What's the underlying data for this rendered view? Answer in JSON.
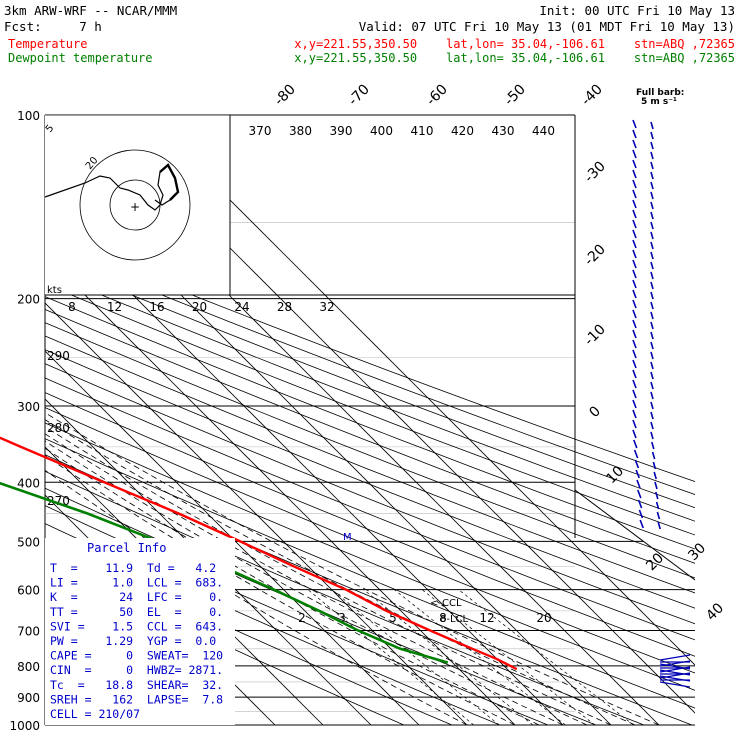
{
  "header": {
    "model": "3km ARW-WRF -- NCAR/MMM",
    "init": "Init: 00 UTC Fri 10 May 13",
    "fcst": "Fcst:     7 h",
    "valid": "Valid: 07 UTC Fri 10 May 13 (01 MDT Fri 10 May 13)",
    "temp_label": "Temperature",
    "temp_loc": "x,y=221.55,350.50    lat,lon= 35.04,-106.61    stn=ABQ ,72365",
    "dew_label": "Dewpoint temperature",
    "dew_loc": "x,y=221.55,350.50    lat,lon= 35.04,-106.61    stn=ABQ ,72365"
  },
  "legend": {
    "full_barb": "Full barb:",
    "full_barb_unit": "5 m s⁻¹"
  },
  "colors": {
    "temperature": "#ff0000",
    "dewpoint": "#008000",
    "barbs": "#0000b4",
    "parcel": "#0000cc",
    "grid": "#000000"
  },
  "parcel_info": {
    "title": "Parcel Info",
    "rows": [
      "T  =    11.9  Td =   4.2",
      "LI =     1.0  LCL =  683.",
      "K  =      24  LFC =    0.",
      "TT =      50  EL  =    0.",
      "SVI =    1.5  CCL =  643.",
      "PW =    1.29  YGP =  0.0",
      "CAPE =     0  SWEAT=  120",
      "CIN  =     0  HWBZ= 2871.",
      "Tc  =   18.8  SHEAR=  32.",
      "SREH =   162  LAPSE=  7.8",
      "CELL = 210/07"
    ]
  },
  "chart_data": {
    "type": "line",
    "title": "",
    "xlabel": "",
    "ylabel": "",
    "y_axis": {
      "scale": "log",
      "ticks": [
        "100",
        "200",
        "300",
        "400",
        "500",
        "600",
        "700",
        "800",
        "900",
        "1000"
      ]
    },
    "isotherm_labels": [
      "-80",
      "-70",
      "-60",
      "-50",
      "-40",
      "-30",
      "-20",
      "-10",
      "0",
      "10",
      "20",
      "30",
      "40"
    ],
    "theta_labels": [
      "370",
      "380",
      "390",
      "400",
      "410",
      "420",
      "430",
      "440"
    ],
    "theta_left_labels": [
      "290",
      "280",
      "270"
    ],
    "mixing_ratio_labels": [
      "2",
      "3",
      "5",
      "8",
      "12",
      "20"
    ],
    "markers": [
      "<-CCL",
      "8-LCL"
    ],
    "hodograph": {
      "unit": "kts",
      "x_labels": [
        "8",
        "12",
        "16",
        "20",
        "24",
        "28",
        "32"
      ],
      "ring_labels": [
        "5",
        "20"
      ]
    },
    "series": [
      {
        "name": "Temperature",
        "color": "#ff0000",
        "points": [
          [
            100,
            -60
          ],
          [
            150,
            -62
          ],
          [
            200,
            -64
          ],
          [
            250,
            -66
          ],
          [
            300,
            -56
          ],
          [
            350,
            -45
          ],
          [
            400,
            -35
          ],
          [
            450,
            -26
          ],
          [
            500,
            -19
          ],
          [
            550,
            -13
          ],
          [
            600,
            -7
          ],
          [
            650,
            -3
          ],
          [
            700,
            2
          ],
          [
            750,
            7
          ],
          [
            780,
            10
          ],
          [
            810,
            12
          ]
        ]
      },
      {
        "name": "Dewpoint temperature",
        "color": "#008000",
        "points": [
          [
            100,
            -88
          ],
          [
            150,
            -90
          ],
          [
            200,
            -88
          ],
          [
            250,
            -88
          ],
          [
            300,
            -82
          ],
          [
            350,
            -68
          ],
          [
            370,
            -64
          ],
          [
            390,
            -60
          ],
          [
            450,
            -45
          ],
          [
            500,
            -36
          ],
          [
            550,
            -28
          ],
          [
            600,
            -22
          ],
          [
            650,
            -17
          ],
          [
            700,
            -13
          ],
          [
            750,
            -8
          ],
          [
            790,
            -1
          ]
        ]
      }
    ]
  }
}
